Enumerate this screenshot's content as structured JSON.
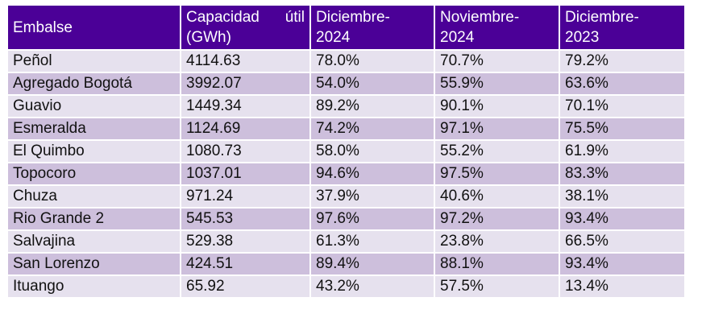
{
  "table": {
    "headers": {
      "embalse": "Embalse",
      "capacidad_word1": "Capacidad",
      "capacidad_word2": "útil",
      "capacidad_unit": "(GWh)",
      "dic2024_line1": "Diciembre-",
      "dic2024_line2": "2024",
      "nov2024_line1": "Noviembre-",
      "nov2024_line2": "2024",
      "dic2023_line1": "Diciembre-",
      "dic2023_line2": "2023"
    },
    "rows": [
      {
        "embalse": "Peñol",
        "capacidad": "4114.63",
        "dic2024": "78.0%",
        "nov2024": "70.7%",
        "dic2023": "79.2%"
      },
      {
        "embalse": "Agregado Bogotá",
        "capacidad": "3992.07",
        "dic2024": "54.0%",
        "nov2024": "55.9%",
        "dic2023": "63.6%"
      },
      {
        "embalse": "Guavio",
        "capacidad": "1449.34",
        "dic2024": "89.2%",
        "nov2024": "90.1%",
        "dic2023": "70.1%"
      },
      {
        "embalse": "Esmeralda",
        "capacidad": "1124.69",
        "dic2024": "74.2%",
        "nov2024": "97.1%",
        "dic2023": "75.5%"
      },
      {
        "embalse": "El Quimbo",
        "capacidad": "1080.73",
        "dic2024": "58.0%",
        "nov2024": "55.2%",
        "dic2023": "61.9%"
      },
      {
        "embalse": "Topocoro",
        "capacidad": "1037.01",
        "dic2024": "94.6%",
        "nov2024": "97.5%",
        "dic2023": "83.3%"
      },
      {
        "embalse": "Chuza",
        "capacidad": "971.24",
        "dic2024": "37.9%",
        "nov2024": "40.6%",
        "dic2023": "38.1%"
      },
      {
        "embalse": "Rio Grande 2",
        "capacidad": "545.53",
        "dic2024": "97.6%",
        "nov2024": "97.2%",
        "dic2023": "93.4%"
      },
      {
        "embalse": "Salvajina",
        "capacidad": "529.38",
        "dic2024": "61.3%",
        "nov2024": "23.8%",
        "dic2023": "66.5%"
      },
      {
        "embalse": "San Lorenzo",
        "capacidad": "424.51",
        "dic2024": "89.4%",
        "nov2024": "88.1%",
        "dic2023": "93.4%"
      },
      {
        "embalse": "Ituango",
        "capacidad": "65.92",
        "dic2024": "43.2%",
        "nov2024": "57.5%",
        "dic2023": "13.4%"
      }
    ]
  },
  "colors": {
    "header_bg": "#4b0097",
    "header_text": "#ffffff",
    "row_light": "#e6e1ee",
    "row_dark": "#cdbfdc"
  }
}
